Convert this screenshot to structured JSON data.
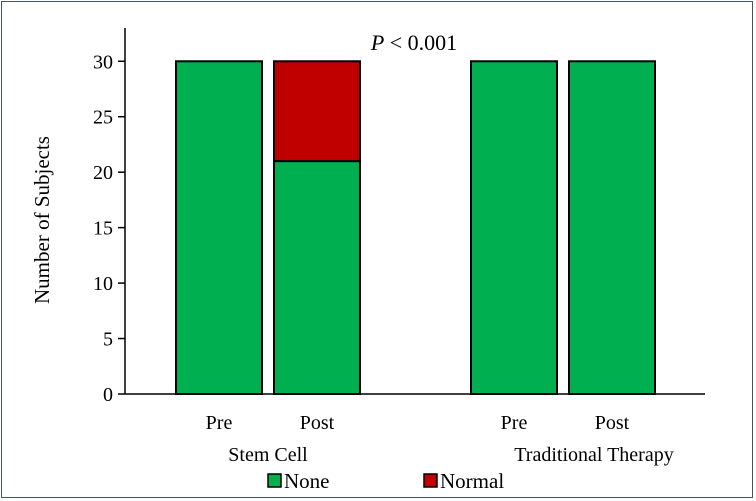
{
  "chart_data": {
    "type": "bar",
    "stacked": true,
    "title": "",
    "xlabel": "",
    "ylabel": "Number of Subjects",
    "ylim": [
      0,
      33
    ],
    "yticks": [
      0,
      5,
      10,
      15,
      20,
      25,
      30
    ],
    "groups": [
      {
        "label": "Stem Cell",
        "categories": [
          "Pre",
          "Post"
        ]
      },
      {
        "label": "Traditional Therapy",
        "categories": [
          "Pre",
          "Post"
        ]
      }
    ],
    "categories": [
      "Pre",
      "Post",
      "Pre",
      "Post"
    ],
    "series": [
      {
        "name": "None",
        "color": "#00b050",
        "values": [
          30,
          21,
          30,
          30
        ]
      },
      {
        "name": "Normal",
        "color": "#c00000",
        "values": [
          0,
          9,
          0,
          0
        ]
      }
    ],
    "annotation": {
      "prefix": "P",
      "text": " < 0.001"
    },
    "legend_position": "bottom",
    "grid": false
  }
}
